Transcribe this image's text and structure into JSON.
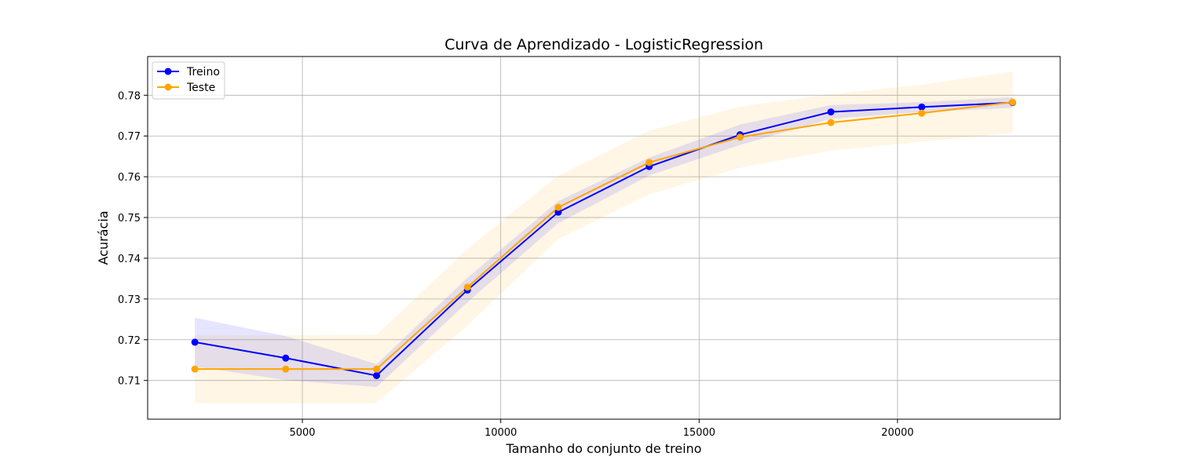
{
  "chart_data": {
    "type": "line",
    "title": "Curva de Aprendizado - LogisticRegression",
    "xlabel": "Tamanho do conjunto de treino",
    "ylabel": "Acurácia",
    "xlim": [
      1100,
      24100
    ],
    "ylim": [
      0.7005,
      0.7895
    ],
    "x_ticks": [
      5000,
      10000,
      15000,
      20000
    ],
    "x_tick_labels": [
      "5000",
      "10000",
      "15000",
      "20000"
    ],
    "y_ticks": [
      0.71,
      0.72,
      0.73,
      0.74,
      0.75,
      0.76,
      0.77,
      0.78
    ],
    "y_tick_labels": [
      "0.71",
      "0.72",
      "0.73",
      "0.74",
      "0.75",
      "0.76",
      "0.77",
      "0.78"
    ],
    "grid": true,
    "legend_position": "top-left",
    "x": [
      2290,
      4580,
      6870,
      9160,
      11450,
      13740,
      16030,
      18320,
      20610,
      22900
    ],
    "series": [
      {
        "name": "Treino",
        "color": "#0000ff",
        "values": [
          0.7194,
          0.7155,
          0.7112,
          0.7322,
          0.7513,
          0.7625,
          0.7703,
          0.7759,
          0.7771,
          0.7782
        ],
        "upper": [
          0.7254,
          0.7209,
          0.714,
          0.7352,
          0.754,
          0.7647,
          0.7728,
          0.7776,
          0.7783,
          0.7795
        ],
        "lower": [
          0.7134,
          0.7101,
          0.7084,
          0.7292,
          0.7486,
          0.7603,
          0.7678,
          0.7742,
          0.7759,
          0.7769
        ]
      },
      {
        "name": "Teste",
        "color": "#ffa500",
        "values": [
          0.7128,
          0.7128,
          0.7128,
          0.7329,
          0.7525,
          0.7635,
          0.7697,
          0.7733,
          0.7756,
          0.7783
        ],
        "upper": [
          0.7211,
          0.7211,
          0.7212,
          0.7423,
          0.7603,
          0.7713,
          0.7772,
          0.7802,
          0.7826,
          0.7858
        ],
        "lower": [
          0.7045,
          0.7045,
          0.7045,
          0.7235,
          0.7447,
          0.7557,
          0.7622,
          0.7664,
          0.7686,
          0.7708
        ]
      }
    ]
  }
}
